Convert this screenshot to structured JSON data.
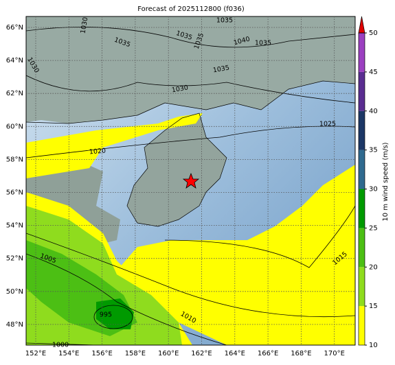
{
  "title": "Forecast of 2025112800 (f036)",
  "map": {
    "lon_labels": [
      "152°E",
      "154°E",
      "156°E",
      "158°E",
      "160°E",
      "162°E",
      "164°E",
      "166°E",
      "168°E",
      "170°E"
    ],
    "lat_labels": [
      "66°N",
      "64°N",
      "62°N",
      "60°N",
      "58°N",
      "56°N",
      "54°N",
      "52°N",
      "50°N",
      "48°N"
    ],
    "isobar_labels": [
      "1030",
      "1035",
      "1035",
      "1035",
      "1035",
      "1040",
      "1035",
      "1030",
      "1035",
      "1030",
      "1025",
      "1020",
      "1015",
      "1005",
      "1010",
      "995",
      "1000"
    ]
  },
  "colorbar": {
    "label": "10 m wind speed (m/s)",
    "ticks": [
      10,
      15,
      20,
      25,
      30,
      35,
      40,
      45,
      50
    ],
    "colors": [
      "#ffff00",
      "#8fdc1e",
      "#4cbf14",
      "#009a00",
      "#2f6a8f",
      "#1c3766",
      "#5a2d91",
      "#9b3fc0"
    ],
    "extend_color": "#e00000"
  }
}
